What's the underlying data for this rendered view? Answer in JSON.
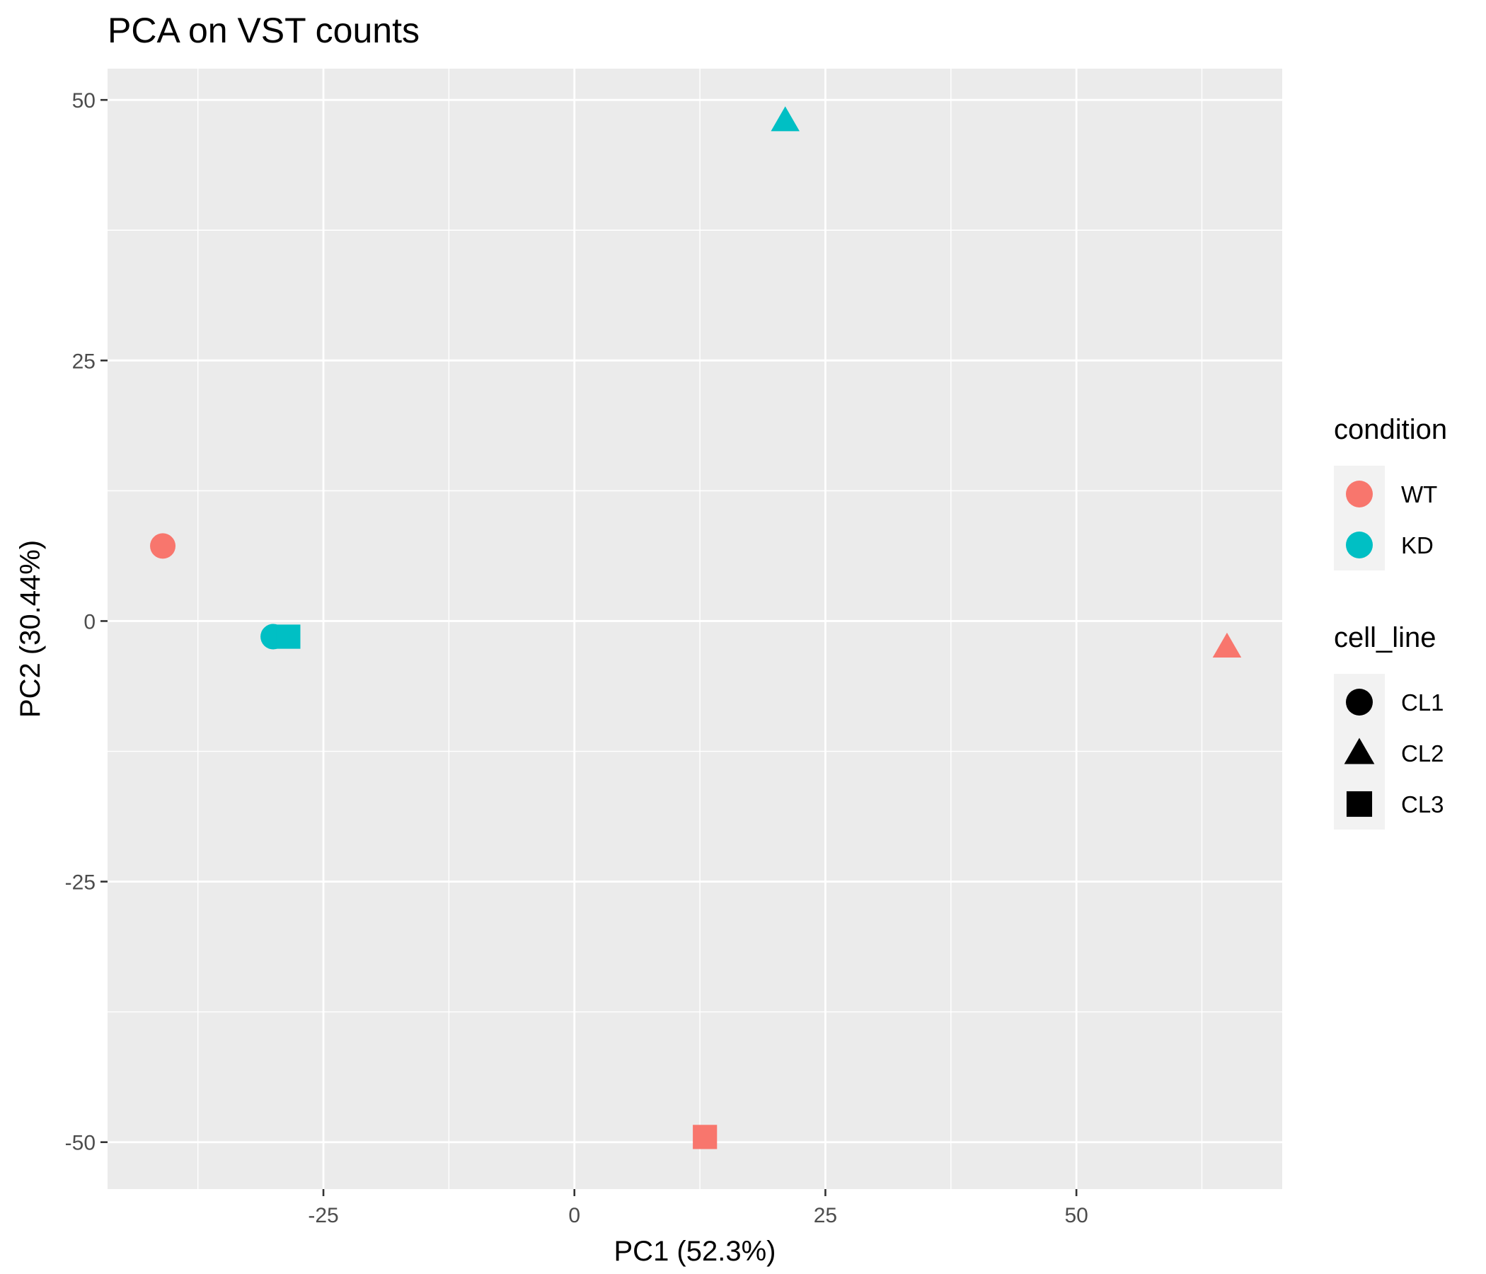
{
  "chart_data": {
    "type": "scatter",
    "title": "PCA on VST counts",
    "xlabel": "PC1 (52.3%)",
    "ylabel": "PC2 (30.44%)",
    "xlim": [
      -46.5,
      70.5
    ],
    "ylim": [
      -54.5,
      53
    ],
    "x_ticks": [
      -25,
      0,
      25,
      50
    ],
    "y_ticks": [
      -50,
      -25,
      0,
      25,
      50
    ],
    "grid": true,
    "legend_position": "right",
    "panel_color": "#EBEBEB",
    "gridline_color": "#FFFFFF",
    "colors": {
      "WT": "#F8766D",
      "KD": "#00BFC4"
    },
    "legends": [
      {
        "title": "condition",
        "entries": [
          {
            "label": "WT",
            "shape": "circle",
            "color": "#F8766D"
          },
          {
            "label": "KD",
            "shape": "circle",
            "color": "#00BFC4"
          }
        ]
      },
      {
        "title": "cell_line",
        "entries": [
          {
            "label": "CL1",
            "shape": "circle",
            "color": "#000000"
          },
          {
            "label": "CL2",
            "shape": "triangle",
            "color": "#000000"
          },
          {
            "label": "CL3",
            "shape": "square",
            "color": "#000000"
          }
        ]
      }
    ],
    "points": [
      {
        "condition": "WT",
        "cell_line": "CL1",
        "x": -41,
        "y": 7.2
      },
      {
        "condition": "WT",
        "cell_line": "CL2",
        "x": 65,
        "y": -2.5
      },
      {
        "condition": "WT",
        "cell_line": "CL3",
        "x": 13,
        "y": -49.5
      },
      {
        "condition": "KD",
        "cell_line": "CL1",
        "x": -30,
        "y": -1.5
      },
      {
        "condition": "KD",
        "cell_line": "CL2",
        "x": 21,
        "y": 48
      },
      {
        "condition": "KD",
        "cell_line": "CL3",
        "x": -28.5,
        "y": -1.5
      }
    ]
  }
}
